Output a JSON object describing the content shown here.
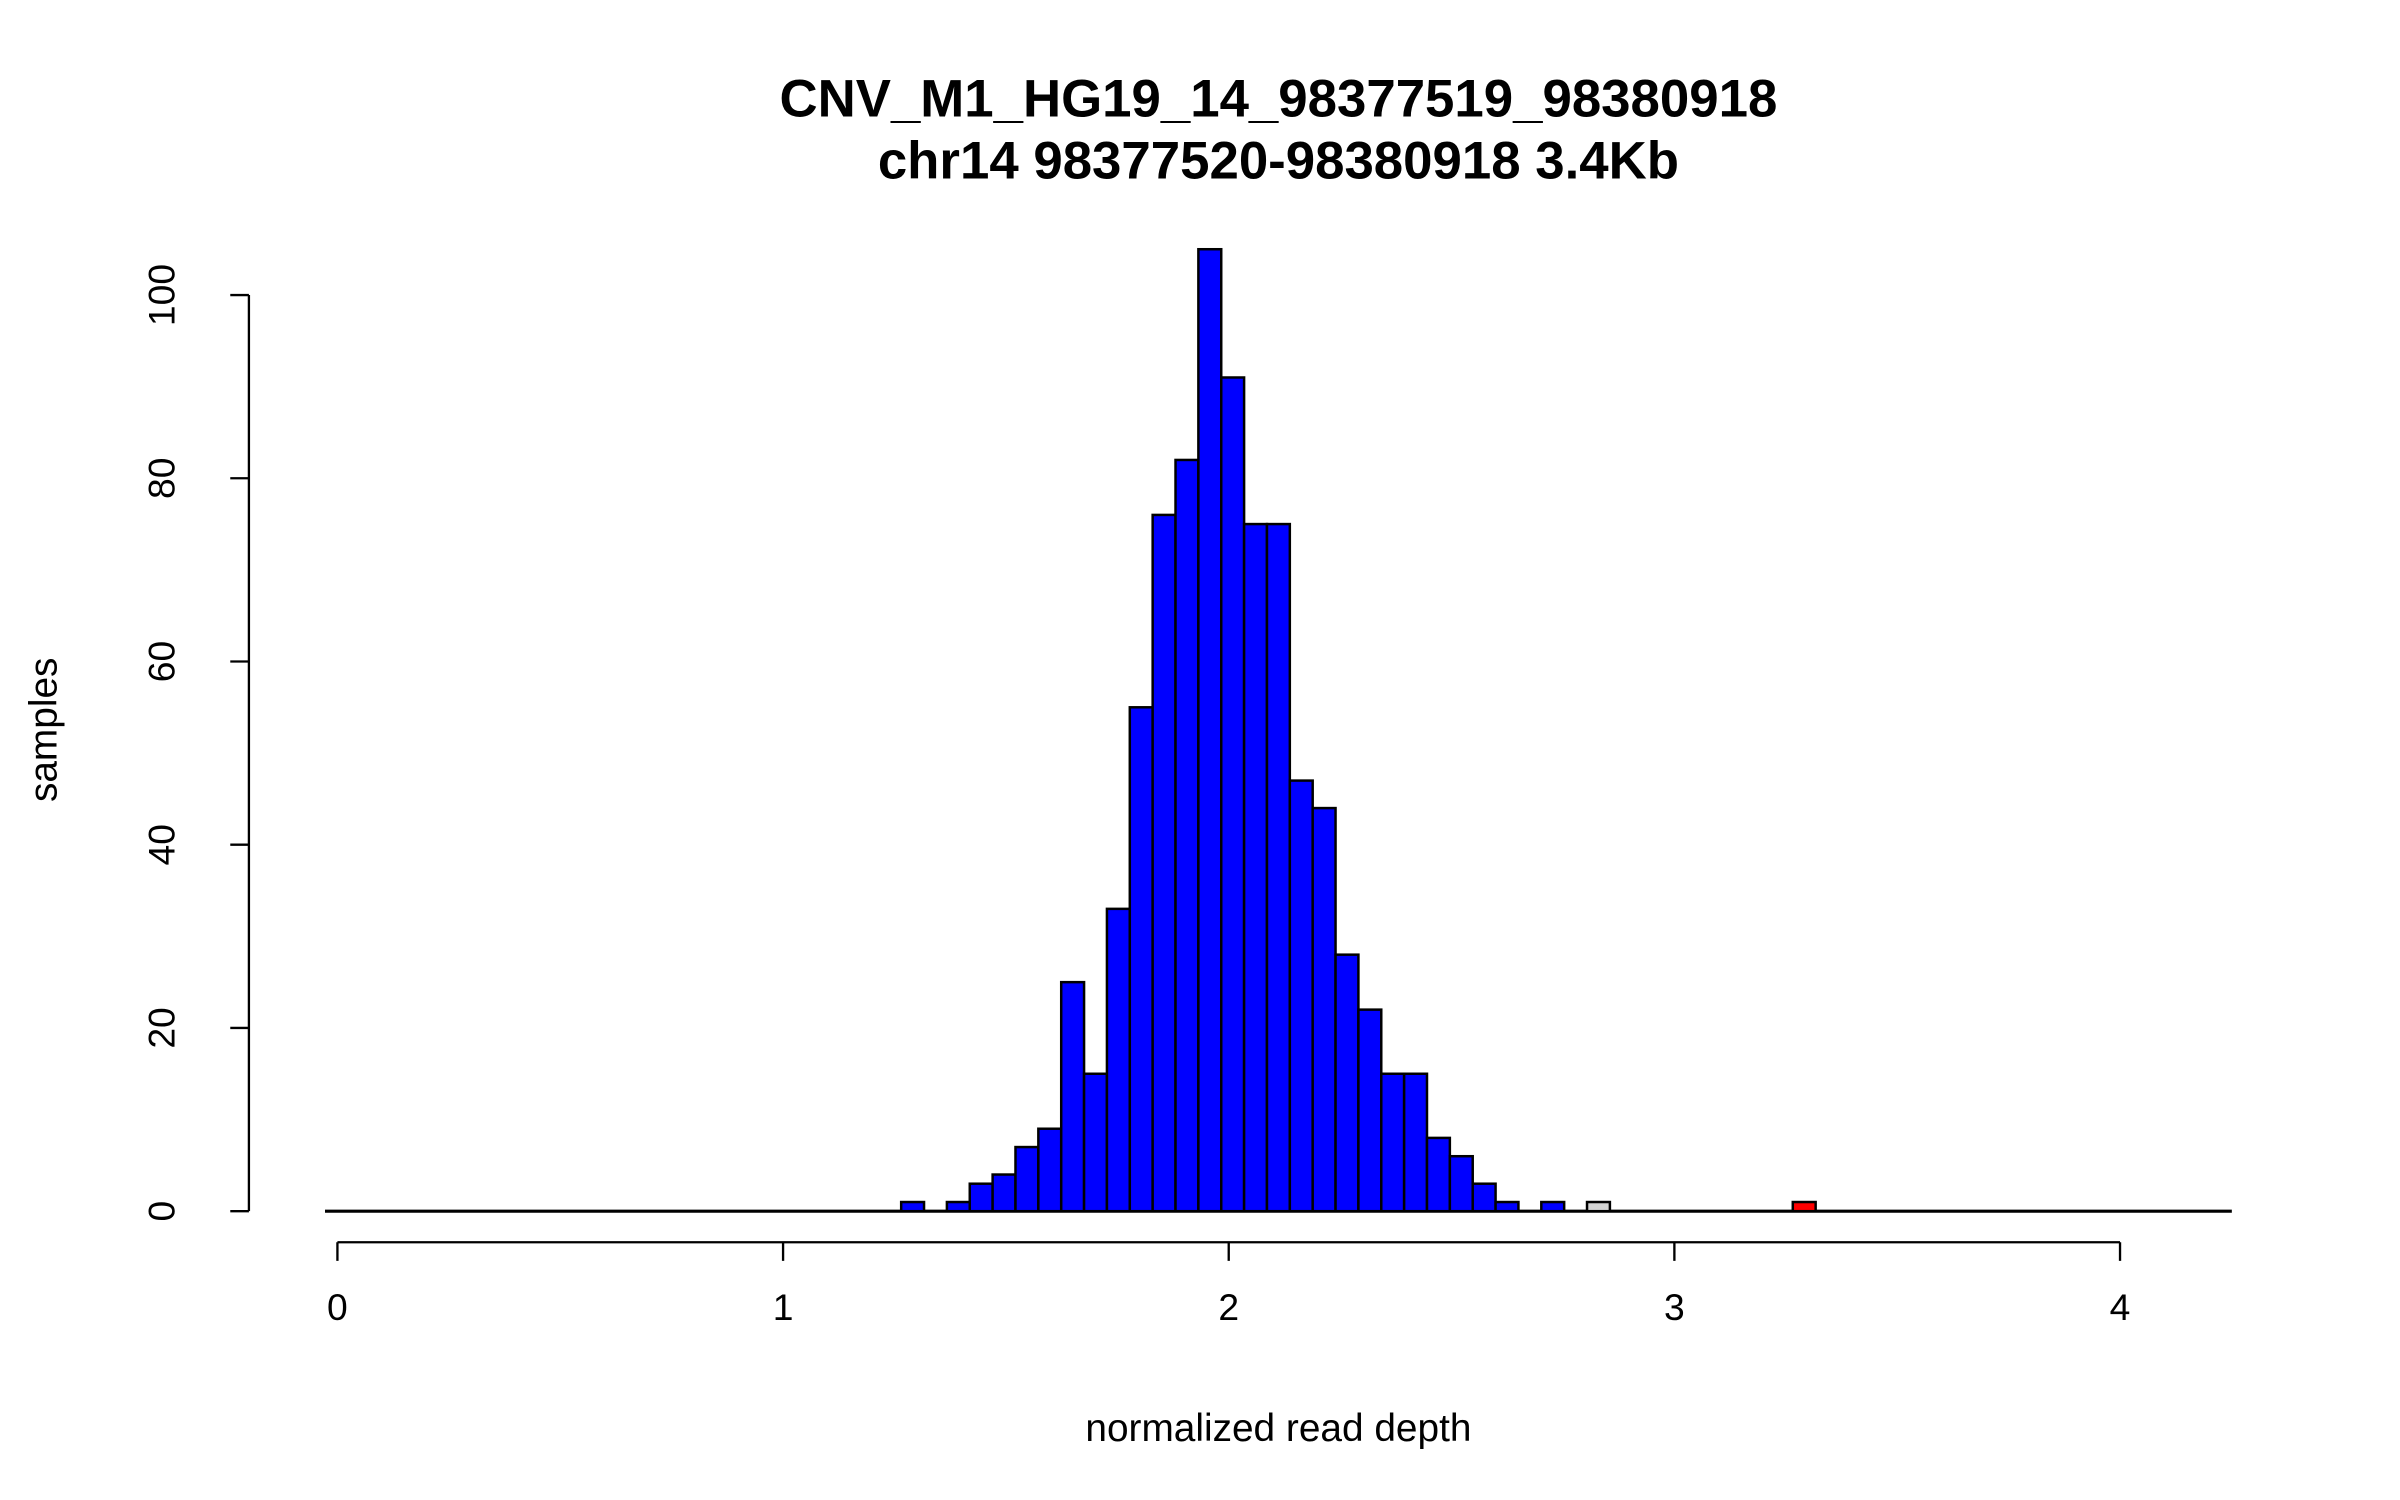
{
  "chart_data": {
    "type": "bar",
    "subtype": "histogram",
    "title": "CNV_M1_HG19_14_98377519_98380918",
    "subtitle": "chr14 98377520-98380918 3.4Kb",
    "xlabel": "normalized read depth",
    "ylabel": "samples",
    "xlim": [
      -0.03,
      4.25
    ],
    "ylim": [
      0,
      105
    ],
    "xticks": [
      "0",
      "1",
      "2",
      "3",
      "4"
    ],
    "yticks": [
      "0",
      "20",
      "40",
      "60",
      "80",
      "100"
    ],
    "bin_start": 1.265,
    "bin_width": 0.0513,
    "values": [
      1,
      0,
      1,
      3,
      4,
      7,
      9,
      25,
      15,
      33,
      55,
      76,
      82,
      105,
      91,
      75,
      75,
      47,
      44,
      28,
      22,
      15,
      15,
      8,
      6,
      3,
      1,
      0,
      1,
      0,
      1,
      0,
      0,
      0,
      0,
      0,
      0,
      0,
      0,
      1
    ],
    "highlight": {
      "30": "#d3d3d3",
      "39": "#ff0000"
    },
    "bar_color": "#0000ff",
    "grid": false
  }
}
